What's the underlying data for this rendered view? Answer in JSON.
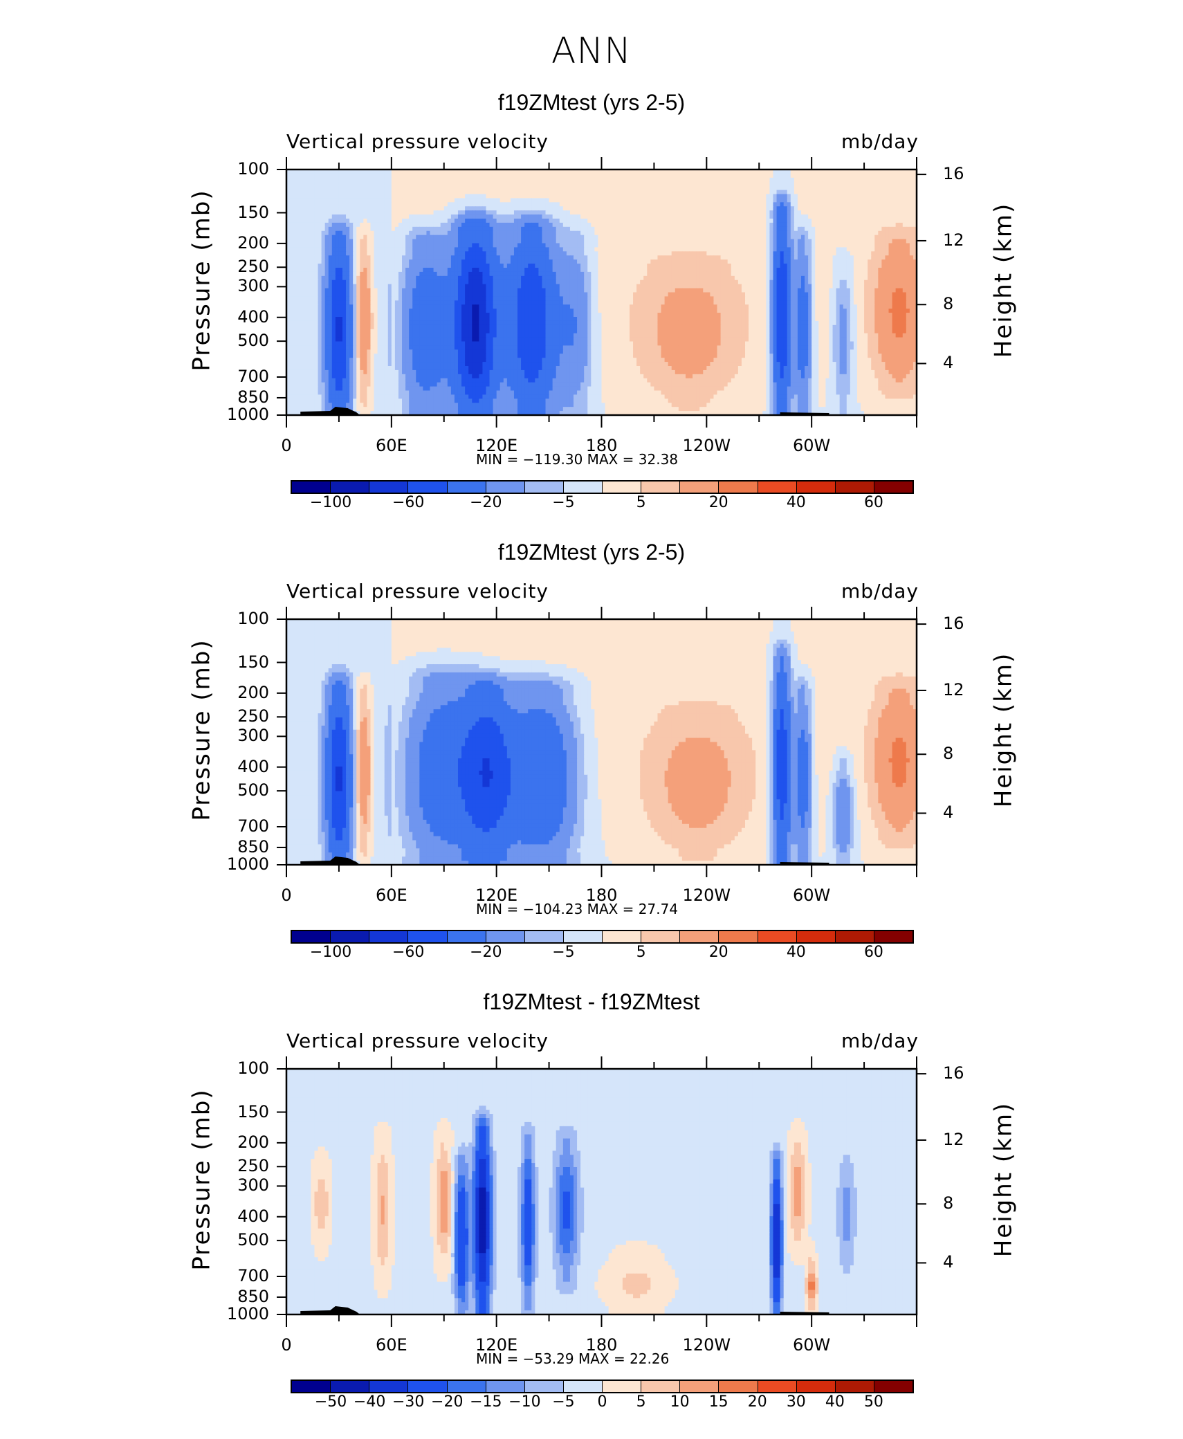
{
  "page_title": "ANN",
  "colors": {
    "neg": [
      "#00008f",
      "#0a1bb0",
      "#1437d6",
      "#1f52ed",
      "#3b73ee",
      "#6f95ef",
      "#a3bcf3",
      "#d5e5fa"
    ],
    "pos": [
      "#fde6d2",
      "#f8c7ac",
      "#f4a07a",
      "#ee7a4c",
      "#ea4b23",
      "#d52c0c",
      "#ae1a04",
      "#840000"
    ],
    "land": "#000000"
  },
  "chart_data": [
    {
      "type": "heatmap",
      "title": "f19ZMtest (yrs 2-5)",
      "subtitle_left": "Vertical pressure velocity",
      "subtitle_right": "mb/day",
      "ylabel": "Pressure (mb)",
      "y2label": "Height (km)",
      "yticks": [
        "100",
        "150",
        "200",
        "250",
        "300",
        "400",
        "500",
        "700",
        "850",
        "1000"
      ],
      "ytick_values": [
        100,
        150,
        200,
        250,
        300,
        400,
        500,
        700,
        850,
        1000
      ],
      "y2ticks": [
        "16",
        "12",
        "8",
        "4"
      ],
      "xticks": [
        "0",
        "60E",
        "120E",
        "180",
        "120W",
        "60W"
      ],
      "xtick_values": [
        0,
        60,
        120,
        180,
        240,
        300
      ],
      "xlim": [
        0,
        360
      ],
      "ylim": [
        1000,
        100
      ],
      "stats": "MIN = −119.30   MAX =   32.38",
      "min": -119.3,
      "max": 32.38,
      "colorbar_labels": [
        "−100",
        "−60",
        "−20",
        "−5",
        "5",
        "20",
        "40",
        "60"
      ],
      "features": [
        {
          "lon": 30,
          "w": 7,
          "p0": 200,
          "p1": 1000,
          "v": -60
        },
        {
          "lon": 44,
          "w": 5,
          "p0": 200,
          "p1": 850,
          "v": 20
        },
        {
          "lon": 80,
          "w": 14,
          "p0": 200,
          "p1": 950,
          "v": -35
        },
        {
          "lon": 108,
          "w": 12,
          "p0": 180,
          "p1": 970,
          "v": -85
        },
        {
          "lon": 140,
          "w": 14,
          "p0": 180,
          "p1": 970,
          "v": -60
        },
        {
          "lon": 165,
          "w": 10,
          "p0": 200,
          "p1": 900,
          "v": -20
        },
        {
          "lon": 230,
          "w": 28,
          "p0": 250,
          "p1": 900,
          "v": 12
        },
        {
          "lon": 283,
          "w": 5,
          "p0": 150,
          "p1": 1000,
          "v": -60
        },
        {
          "lon": 295,
          "w": 5,
          "p0": 200,
          "p1": 950,
          "v": -30
        },
        {
          "lon": 318,
          "w": 6,
          "p0": 250,
          "p1": 900,
          "v": -15
        },
        {
          "lon": 350,
          "w": 14,
          "p0": 200,
          "p1": 750,
          "v": 20
        }
      ]
    },
    {
      "type": "heatmap",
      "title": "f19ZMtest (yrs 2-5)",
      "subtitle_left": "Vertical pressure velocity",
      "subtitle_right": "mb/day",
      "ylabel": "Pressure (mb)",
      "y2label": "Height (km)",
      "yticks": [
        "100",
        "150",
        "200",
        "250",
        "300",
        "400",
        "500",
        "700",
        "850",
        "1000"
      ],
      "ytick_values": [
        100,
        150,
        200,
        250,
        300,
        400,
        500,
        700,
        850,
        1000
      ],
      "y2ticks": [
        "16",
        "12",
        "8",
        "4"
      ],
      "xticks": [
        "0",
        "60E",
        "120E",
        "180",
        "120W",
        "60W"
      ],
      "xtick_values": [
        0,
        60,
        120,
        180,
        240,
        300
      ],
      "xlim": [
        0,
        360
      ],
      "ylim": [
        1000,
        100
      ],
      "stats": "MIN = −104.23   MAX =   27.74",
      "min": -104.23,
      "max": 27.74,
      "colorbar_labels": [
        "−100",
        "−60",
        "−20",
        "−5",
        "5",
        "20",
        "40",
        "60"
      ],
      "features": [
        {
          "lon": 30,
          "w": 7,
          "p0": 200,
          "p1": 1000,
          "v": -60
        },
        {
          "lon": 44,
          "w": 5,
          "p0": 200,
          "p1": 850,
          "v": 20
        },
        {
          "lon": 90,
          "w": 22,
          "p0": 180,
          "p1": 950,
          "v": -35
        },
        {
          "lon": 115,
          "w": 14,
          "p0": 200,
          "p1": 900,
          "v": -50
        },
        {
          "lon": 145,
          "w": 20,
          "p0": 200,
          "p1": 950,
          "v": -40
        },
        {
          "lon": 235,
          "w": 28,
          "p0": 250,
          "p1": 920,
          "v": 12
        },
        {
          "lon": 283,
          "w": 5,
          "p0": 150,
          "p1": 1000,
          "v": -55
        },
        {
          "lon": 295,
          "w": 5,
          "p0": 200,
          "p1": 950,
          "v": -30
        },
        {
          "lon": 318,
          "w": 6,
          "p0": 400,
          "p1": 950,
          "v": -20
        },
        {
          "lon": 350,
          "w": 14,
          "p0": 200,
          "p1": 750,
          "v": 20
        }
      ]
    },
    {
      "type": "heatmap",
      "title": "f19ZMtest - f19ZMtest",
      "subtitle_left": "Vertical pressure velocity",
      "subtitle_right": "mb/day",
      "ylabel": "Pressure (mb)",
      "y2label": "Height (km)",
      "yticks": [
        "100",
        "150",
        "200",
        "250",
        "300",
        "400",
        "500",
        "700",
        "850",
        "1000"
      ],
      "ytick_values": [
        100,
        150,
        200,
        250,
        300,
        400,
        500,
        700,
        850,
        1000
      ],
      "y2ticks": [
        "16",
        "12",
        "8",
        "4"
      ],
      "xticks": [
        "0",
        "60E",
        "120E",
        "180",
        "120W",
        "60W"
      ],
      "xtick_values": [
        0,
        60,
        120,
        180,
        240,
        300
      ],
      "xlim": [
        0,
        360
      ],
      "ylim": [
        1000,
        100
      ],
      "stats": "MIN = −53.29   MAX =   22.26",
      "min": -53.29,
      "max": 22.26,
      "colorbar_labels": [
        "−50",
        "−40",
        "−30",
        "−20",
        "−15",
        "−10",
        "−5",
        "0",
        "5",
        "10",
        "15",
        "20",
        "30",
        "40",
        "50"
      ],
      "features": [
        {
          "lon": 20,
          "w": 5,
          "p0": 250,
          "p1": 500,
          "v": 10
        },
        {
          "lon": 55,
          "w": 5,
          "p0": 200,
          "p1": 700,
          "v": 12
        },
        {
          "lon": 90,
          "w": 5,
          "p0": 200,
          "p1": 600,
          "v": 15
        },
        {
          "lon": 100,
          "w": 4,
          "p0": 250,
          "p1": 950,
          "v": -30
        },
        {
          "lon": 112,
          "w": 5,
          "p0": 180,
          "p1": 950,
          "v": -45
        },
        {
          "lon": 138,
          "w": 4,
          "p0": 200,
          "p1": 900,
          "v": -25
        },
        {
          "lon": 160,
          "w": 7,
          "p0": 200,
          "p1": 700,
          "v": -20
        },
        {
          "lon": 200,
          "w": 18,
          "p0": 600,
          "p1": 950,
          "v": 8
        },
        {
          "lon": 280,
          "w": 3,
          "p0": 250,
          "p1": 1000,
          "v": -40
        },
        {
          "lon": 292,
          "w": 5,
          "p0": 200,
          "p1": 500,
          "v": 15
        },
        {
          "lon": 300,
          "w": 3,
          "p0": 650,
          "p1": 900,
          "v": 20
        },
        {
          "lon": 320,
          "w": 5,
          "p0": 250,
          "p1": 600,
          "v": -12
        }
      ]
    }
  ],
  "panel_layout": [
    130,
    780,
    1430
  ]
}
